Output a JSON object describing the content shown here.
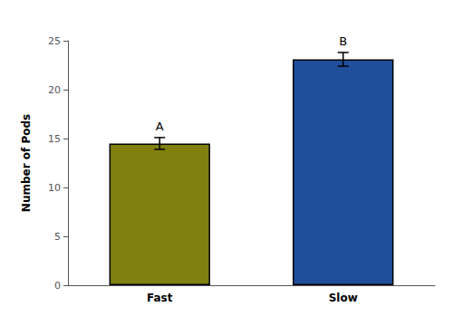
{
  "chart_data": {
    "type": "bar",
    "categories": [
      "Fast",
      "Slow"
    ],
    "values": [
      14.5,
      23.1
    ],
    "errors": [
      0.6,
      0.7
    ],
    "colors": [
      "#808010",
      "#1F4E9A"
    ],
    "annotations": [
      "A",
      "B"
    ],
    "ylabel": "Number of Pods",
    "ylim": [
      0,
      25
    ],
    "yticks": [
      0,
      5,
      10,
      15,
      20,
      25
    ],
    "grid": false
  }
}
